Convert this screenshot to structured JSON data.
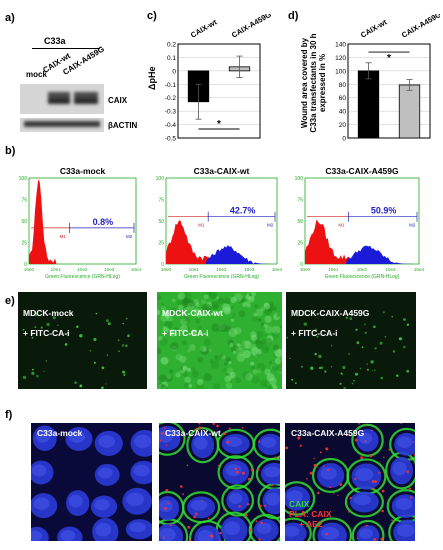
{
  "panel_labels": {
    "a": "a)",
    "b": "b)",
    "c": "c)",
    "d": "d)",
    "e": "e)",
    "f": "f)"
  },
  "panel_a": {
    "cell_line": "C33a",
    "lanes": [
      "mock",
      "CAIX-wt",
      "CAIX-A459G"
    ],
    "bands": [
      "CAIX",
      "βACTIN"
    ]
  },
  "panel_c": {
    "ylabel": "ΔpHe",
    "categories": [
      "CAIX-wt",
      "CAIX-A459G"
    ],
    "significance": "*"
  },
  "panel_d": {
    "ylabel_lines": [
      "Wound area covered by",
      "C33a transfectants in 30 h",
      "expressed in %"
    ],
    "categories": [
      "CAIX-wt",
      "CAIX-A459G"
    ],
    "significance": "*"
  },
  "panel_b": {
    "xlabel": "Green Fluorescence (GRN-HLog)",
    "y_ticks": [
      "0",
      "25",
      "50",
      "75",
      "100"
    ],
    "x_ticks": [
      "10e0",
      "10e1",
      "10e2",
      "10e3",
      "10e4"
    ],
    "gate_labels": [
      "M1",
      "M2"
    ],
    "histograms": [
      {
        "title": "C33a-mock",
        "percent": "0.8%"
      },
      {
        "title": "C33a-CAIX-wt",
        "percent": "42.7%"
      },
      {
        "title": "C33a-CAIX-A459G",
        "percent": "50.9%"
      }
    ]
  },
  "panel_e": {
    "images": [
      {
        "line1": "MDCK-mock",
        "line2": "+ FITC-CA-i"
      },
      {
        "line1": "MDCK-CAIX-wt",
        "line2": "+ FITC-CA-i"
      },
      {
        "line1": "MDCK-CAIX-A459G",
        "line2": "+ FITC-CA-i"
      }
    ]
  },
  "panel_f": {
    "images": [
      {
        "title": "C33a-mock"
      },
      {
        "title": "C33a-CAIX-wt"
      },
      {
        "title": "C33a-CAIX-A459G"
      }
    ],
    "legend_green": "CAIX",
    "legend_red_1": "PLA: CAIX",
    "legend_red_2": "+ AE2"
  },
  "chart_data": [
    {
      "type": "bar",
      "title": "",
      "ylabel": "ΔpHe",
      "categories": [
        "CAIX-wt",
        "CAIX-A459G"
      ],
      "values": [
        -0.23,
        0.03
      ],
      "errors": [
        0.13,
        0.08
      ],
      "ylim": [
        -0.5,
        0.2
      ],
      "yticks": [
        0.2,
        0.1,
        0,
        -0.1,
        -0.2,
        -0.3,
        -0.4,
        -0.5
      ],
      "colors": [
        "#000000",
        "#bfbfbf"
      ],
      "grid": true
    },
    {
      "type": "bar",
      "title": "",
      "ylabel": "Wound area covered by C33a transfectants in 30 h expressed in %",
      "categories": [
        "CAIX-wt",
        "CAIX-A459G"
      ],
      "values": [
        100,
        79
      ],
      "errors": [
        12,
        8
      ],
      "ylim": [
        0,
        140
      ],
      "yticks": [
        0,
        20,
        40,
        60,
        80,
        100,
        120,
        140
      ],
      "colors": [
        "#000000",
        "#bfbfbf"
      ],
      "grid": true
    }
  ]
}
